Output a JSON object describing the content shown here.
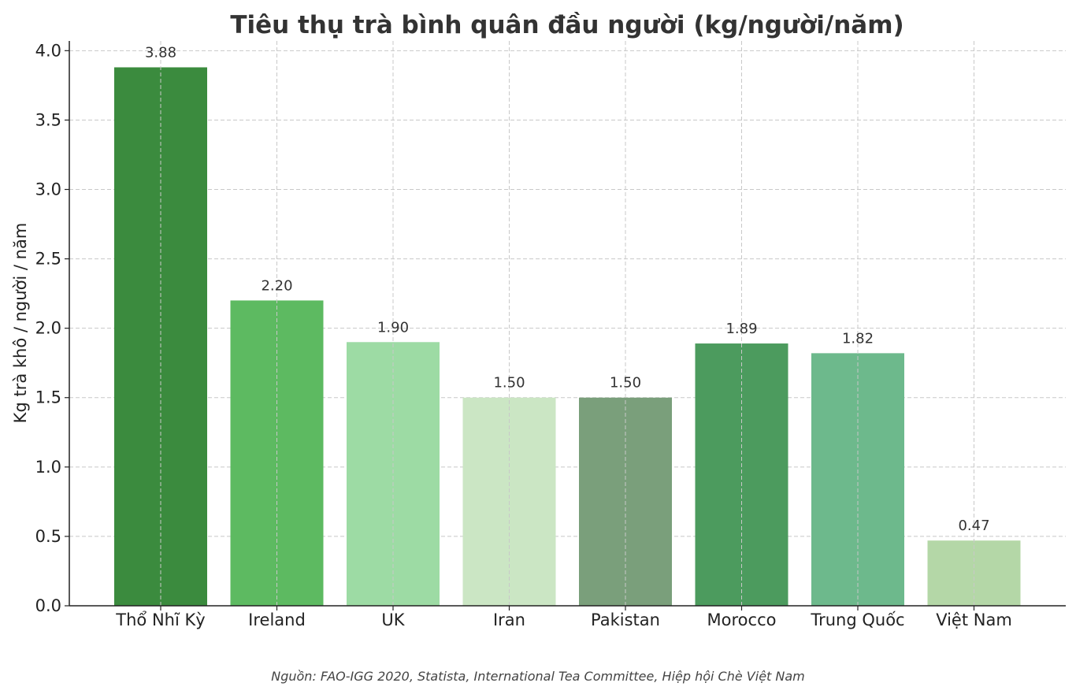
{
  "chart_data": {
    "type": "bar",
    "title": "Tiêu thụ trà bình quân đầu người (kg/người/năm)",
    "xlabel": "",
    "ylabel": "Kg trà khô / người / năm",
    "categories": [
      "Thổ Nhĩ Kỳ",
      "Ireland",
      "UK",
      "Iran",
      "Pakistan",
      "Morocco",
      "Trung Quốc",
      "Việt Nam"
    ],
    "values": [
      3.88,
      2.2,
      1.9,
      1.5,
      1.5,
      1.89,
      1.82,
      0.47
    ],
    "value_labels": [
      "3.88",
      "2.20",
      "1.90",
      "1.50",
      "1.50",
      "1.89",
      "1.82",
      "0.47"
    ],
    "colors": [
      "#3b8b3e",
      "#5dba61",
      "#9ddba4",
      "#cbe6c4",
      "#7a9f7b",
      "#4c9b5e",
      "#6db98c",
      "#b4d7a7"
    ],
    "ylim": [
      0,
      4.07
    ],
    "yticks": [
      "0.0",
      "0.5",
      "1.0",
      "1.5",
      "2.0",
      "2.5",
      "3.0",
      "3.5",
      "4.0"
    ],
    "grid": true,
    "source": "Nguồn: FAO-IGG 2020, Statista, International Tea Committee, Hiệp hội Chè Việt Nam"
  }
}
